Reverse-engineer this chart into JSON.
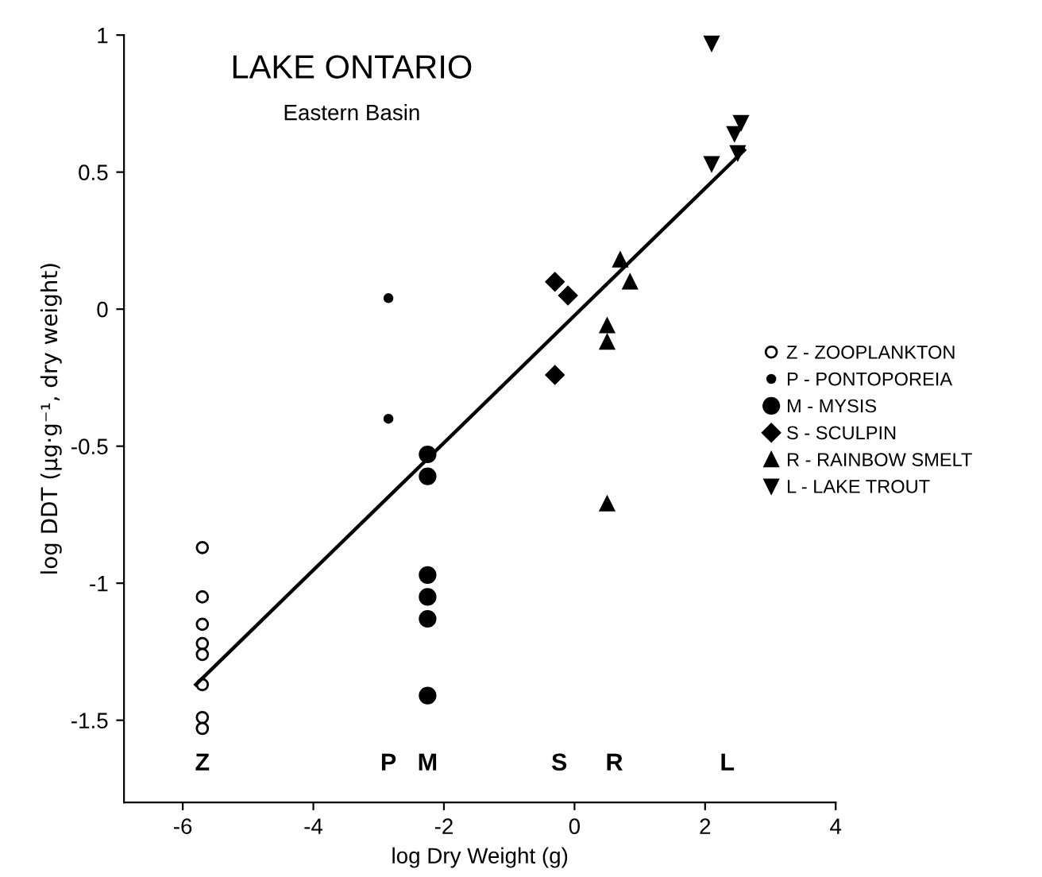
{
  "chart_data": {
    "type": "scatter",
    "title": "LAKE ONTARIO",
    "subtitle": "Eastern Basin",
    "xlabel": "log Dry Weight (g)",
    "ylabel": "log DDT (µg·g⁻¹, dry weight)",
    "xlim": [
      -6.9,
      4
    ],
    "ylim": [
      -1.8,
      1
    ],
    "xticks": [
      -6,
      -4,
      -2,
      0,
      2,
      4
    ],
    "yticks": [
      -1.5,
      -1,
      -0.5,
      0,
      0.5,
      1
    ],
    "grid": false,
    "legend": "right",
    "series": [
      {
        "name": "Z - ZOOPLANKTON",
        "color": "#000000",
        "marker": "circle",
        "x": [
          -5.7,
          -5.7,
          -5.7,
          -5.7,
          -5.7,
          -5.7,
          -5.7,
          -5.7
        ],
        "values": [
          -0.87,
          -1.05,
          -1.15,
          -1.22,
          -1.26,
          -1.37,
          -1.49,
          -1.53
        ]
      },
      {
        "name": "P - PONTOPOREIA",
        "color": "#000000",
        "marker": "circle",
        "x": [
          -2.85,
          -2.85
        ],
        "values": [
          0.04,
          -0.4
        ]
      },
      {
        "name": "M - MYSIS",
        "color": "#000000",
        "marker": "circle",
        "x": [
          -2.25,
          -2.25,
          -2.25,
          -2.25,
          -2.25,
          -2.25
        ],
        "values": [
          -0.53,
          -0.61,
          -0.97,
          -1.05,
          -1.13,
          -1.41
        ]
      },
      {
        "name": "S - SCULPIN",
        "color": "#000000",
        "marker": "diamond",
        "x": [
          -0.3,
          -0.1,
          -0.3
        ],
        "values": [
          0.1,
          0.05,
          -0.24
        ]
      },
      {
        "name": "R - RAINBOW SMELT",
        "color": "#000000",
        "marker": "triangle",
        "x": [
          0.7,
          0.85,
          0.5,
          0.5,
          0.5
        ],
        "values": [
          0.18,
          0.1,
          -0.06,
          -0.12,
          -0.71
        ]
      },
      {
        "name": "L - LAKE TROUT",
        "color": "#000000",
        "marker": "triangle",
        "x": [
          2.1,
          2.1,
          2.5,
          2.45,
          2.55
        ],
        "values": [
          0.97,
          0.53,
          0.57,
          0.64,
          0.68
        ]
      },
      {
        "type": "line",
        "color": "#000000",
        "marker": "none",
        "x": [
          -5.8,
          2.6
        ],
        "values": [
          -1.37,
          0.58
        ]
      }
    ],
    "annotations": [
      "Z",
      "P",
      "M",
      "S",
      "R",
      "L"
    ]
  }
}
